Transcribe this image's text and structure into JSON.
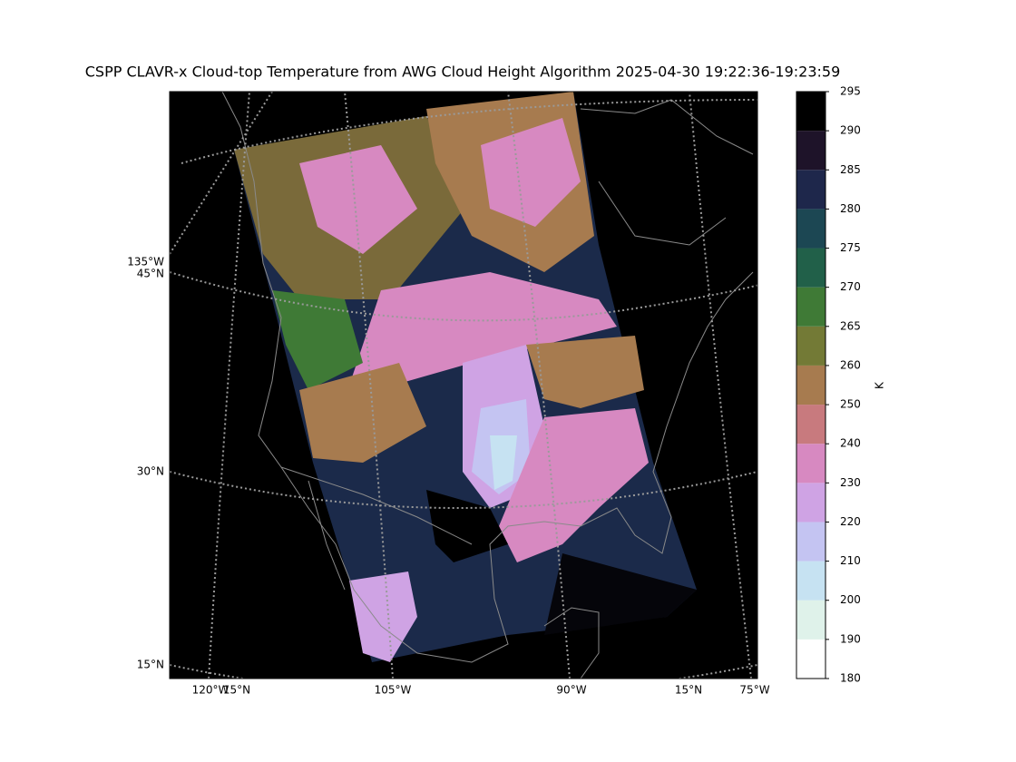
{
  "title": "CSPP CLAVR-x Cloud-top Temperature from AWG Cloud Height Algorithm 2025-04-30 19:22:36-19:23:59",
  "map": {
    "left_labels": [
      "135°W",
      "45°N",
      "30°N",
      "15°N"
    ],
    "bottom_labels": [
      "120°W",
      "15°N",
      "105°W",
      "90°W",
      "15°N",
      "75°W"
    ]
  },
  "colorbar": {
    "label": "K",
    "boundaries": [
      180,
      190,
      200,
      210,
      220,
      230,
      240,
      250,
      260,
      265,
      270,
      275,
      280,
      285,
      290,
      295
    ],
    "colors": [
      "#ffffff",
      "#dff2ea",
      "#c6e2f2",
      "#c4c4f2",
      "#cfa3e4",
      "#d789c1",
      "#c87a7e",
      "#a77b4f",
      "#737a36",
      "#3f7a36",
      "#216049",
      "#1c4753",
      "#1e274b",
      "#1e1329",
      "#000000"
    ]
  }
}
